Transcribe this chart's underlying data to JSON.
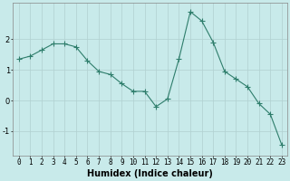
{
  "xlabel": "Humidex (Indice chaleur)",
  "x_values": [
    0,
    1,
    2,
    3,
    4,
    5,
    6,
    7,
    8,
    9,
    10,
    11,
    12,
    13,
    14,
    15,
    16,
    17,
    18,
    19,
    20,
    21,
    22,
    23
  ],
  "y_values": [
    1.35,
    1.45,
    1.65,
    1.85,
    1.85,
    1.75,
    1.3,
    0.95,
    0.85,
    0.55,
    0.3,
    0.3,
    -0.2,
    0.05,
    1.35,
    2.9,
    2.6,
    1.9,
    0.95,
    0.7,
    0.45,
    -0.1,
    -0.45,
    -1.45
  ],
  "line_color": "#2e7d6b",
  "marker": "+",
  "marker_size": 4.0,
  "background_color": "#c8eaea",
  "grid_color": "#b0d0d0",
  "ylim": [
    -1.8,
    3.2
  ],
  "yticks": [
    -1,
    0,
    1,
    2
  ],
  "xlim": [
    -0.5,
    23.5
  ],
  "xlabel_fontsize": 7,
  "tick_fontsize": 5.5
}
